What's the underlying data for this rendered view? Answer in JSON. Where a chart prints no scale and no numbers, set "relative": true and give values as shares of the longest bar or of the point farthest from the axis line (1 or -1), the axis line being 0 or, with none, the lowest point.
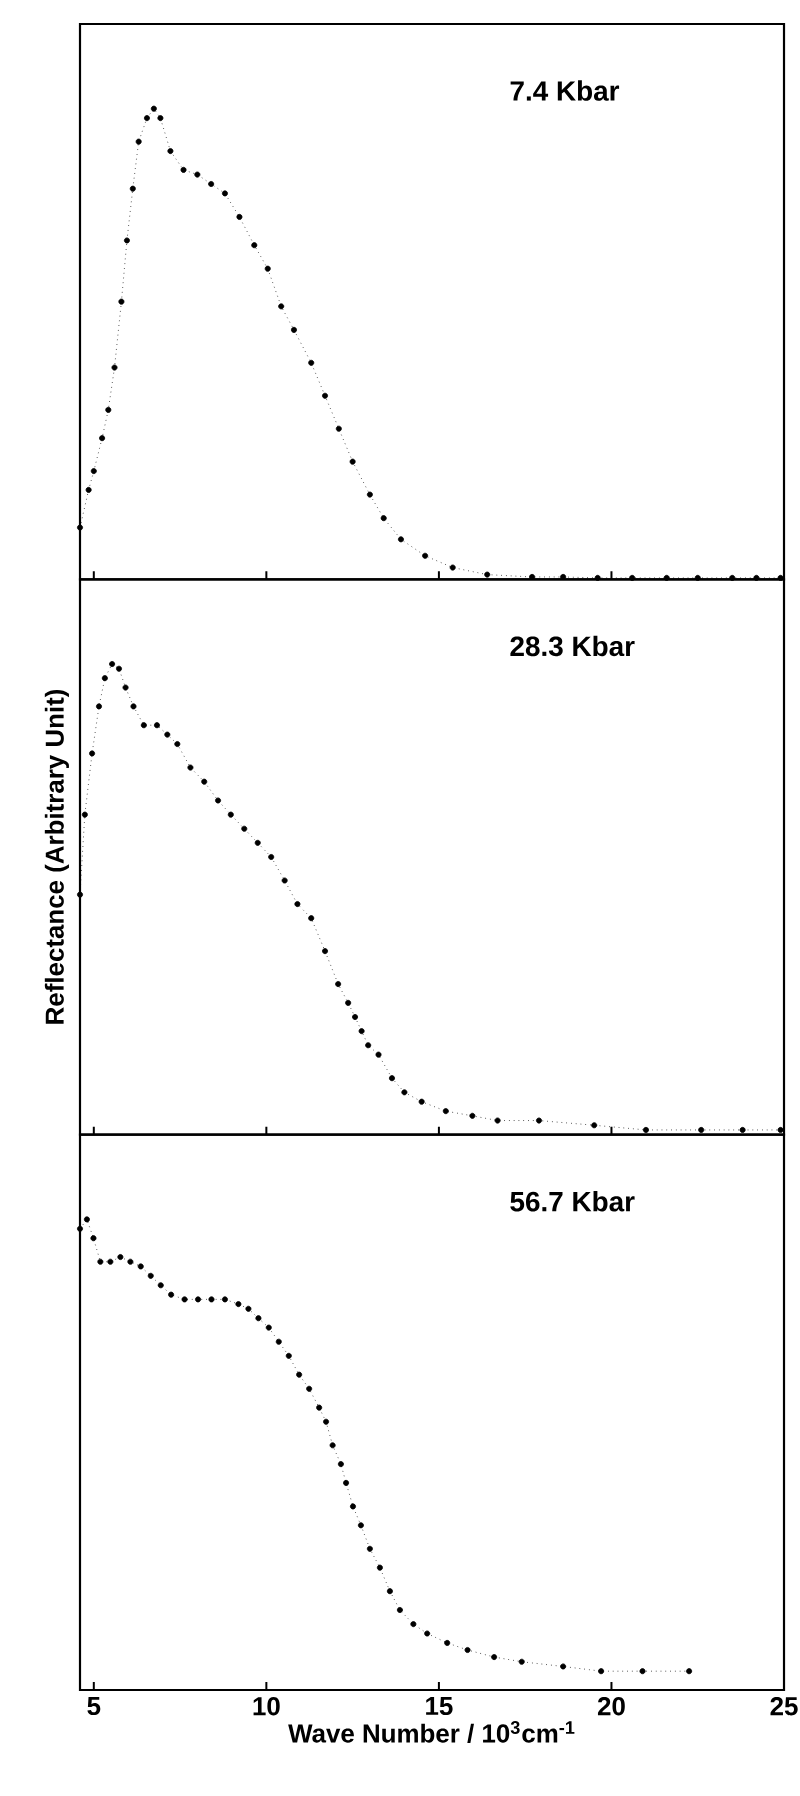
{
  "chart_data": [
    {
      "type": "line",
      "line_style": "dotted",
      "relative": true,
      "marker": "circle",
      "tick_labels": false,
      "xlim": [
        4.6,
        25
      ],
      "xticks": [
        5,
        10,
        15,
        20,
        25
      ],
      "annotations": [
        "7.4 Kbar"
      ],
      "series": [
        {
          "color": "#000000",
          "x": [
            4.6,
            4.85,
            5.0,
            5.24,
            5.42,
            5.6,
            5.8,
            5.96,
            6.13,
            6.3,
            6.54,
            6.74,
            6.93,
            7.22,
            7.6,
            8.0,
            8.4,
            8.8,
            9.22,
            9.65,
            10.04,
            10.43,
            10.8,
            11.3,
            11.7,
            12.1,
            12.5,
            13.0,
            13.4,
            13.9,
            14.6,
            15.4,
            16.4,
            17.7,
            18.6,
            19.6,
            20.6,
            21.6,
            22.5,
            23.5,
            24.2,
            24.9
          ],
          "values": [
            0.11,
            0.19,
            0.23,
            0.3,
            0.36,
            0.45,
            0.59,
            0.72,
            0.83,
            0.93,
            0.98,
            1.0,
            0.98,
            0.91,
            0.87,
            0.86,
            0.84,
            0.82,
            0.77,
            0.71,
            0.66,
            0.58,
            0.53,
            0.46,
            0.39,
            0.32,
            0.25,
            0.18,
            0.13,
            0.085,
            0.05,
            0.025,
            0.01,
            0.005,
            0.005,
            0.003,
            0.003,
            0.003,
            0.003,
            0.003,
            0.003,
            0.003
          ]
        }
      ]
    },
    {
      "type": "line",
      "line_style": "dotted",
      "relative": true,
      "marker": "circle",
      "tick_labels": false,
      "xlim": [
        4.6,
        25
      ],
      "xticks": [
        5,
        10,
        15,
        20,
        25
      ],
      "ylabel": "Reflectance (Arbitrary Unit)",
      "annotations": [
        "28.3 Kbar"
      ],
      "series": [
        {
          "color": "#000000",
          "x": [
            4.6,
            4.74,
            4.95,
            5.15,
            5.32,
            5.53,
            5.73,
            5.92,
            6.15,
            6.45,
            6.83,
            7.13,
            7.42,
            7.8,
            8.2,
            8.6,
            8.97,
            9.36,
            9.75,
            10.14,
            10.53,
            10.9,
            11.3,
            11.7,
            12.08,
            12.37,
            12.57,
            12.76,
            12.95,
            13.25,
            13.64,
            14.0,
            14.5,
            15.2,
            15.97,
            16.7,
            17.9,
            19.5,
            21.0,
            22.6,
            23.8,
            24.9
          ],
          "values": [
            0.51,
            0.68,
            0.81,
            0.91,
            0.97,
            1.0,
            0.99,
            0.95,
            0.91,
            0.87,
            0.87,
            0.85,
            0.83,
            0.78,
            0.75,
            0.71,
            0.68,
            0.65,
            0.62,
            0.59,
            0.54,
            0.49,
            0.46,
            0.39,
            0.32,
            0.28,
            0.25,
            0.22,
            0.19,
            0.17,
            0.12,
            0.09,
            0.07,
            0.05,
            0.04,
            0.03,
            0.03,
            0.02,
            0.01,
            0.01,
            0.01,
            0.01
          ]
        }
      ]
    },
    {
      "type": "line",
      "line_style": "dotted",
      "relative": true,
      "marker": "circle",
      "tick_labels": "x",
      "xlim": [
        4.6,
        25
      ],
      "xticks": [
        5,
        10,
        15,
        20,
        25
      ],
      "xlabel": "Wave Number / 10$^{3}$cm$^{-1}$",
      "annotations": [
        "56.7 Kbar"
      ],
      "series": [
        {
          "color": "#000000",
          "x": [
            4.6,
            4.8,
            4.99,
            5.19,
            5.48,
            5.77,
            6.06,
            6.36,
            6.65,
            6.94,
            7.24,
            7.63,
            8.02,
            8.41,
            8.8,
            9.19,
            9.48,
            9.77,
            10.07,
            10.36,
            10.65,
            10.95,
            11.24,
            11.53,
            11.73,
            11.92,
            12.16,
            12.31,
            12.51,
            12.74,
            13.0,
            13.29,
            13.58,
            13.87,
            14.26,
            14.66,
            15.24,
            15.83,
            16.6,
            17.4,
            18.6,
            19.7,
            20.9,
            22.25
          ],
          "values": [
            0.98,
            1.0,
            0.96,
            0.91,
            0.91,
            0.92,
            0.91,
            0.9,
            0.88,
            0.86,
            0.84,
            0.83,
            0.83,
            0.83,
            0.83,
            0.82,
            0.81,
            0.79,
            0.77,
            0.74,
            0.71,
            0.67,
            0.64,
            0.6,
            0.57,
            0.52,
            0.48,
            0.44,
            0.39,
            0.35,
            0.3,
            0.26,
            0.21,
            0.17,
            0.14,
            0.12,
            0.1,
            0.085,
            0.07,
            0.06,
            0.05,
            0.04,
            0.04,
            0.04
          ]
        }
      ]
    }
  ]
}
